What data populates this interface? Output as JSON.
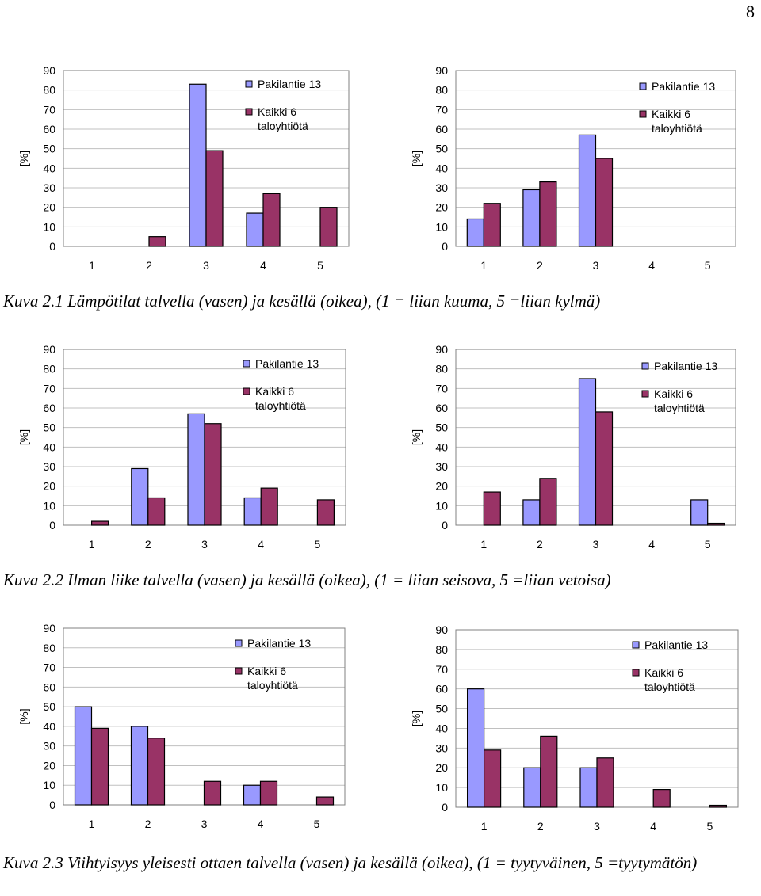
{
  "page_number": "8",
  "legend_labels": {
    "series_a": "Pakilantie 13",
    "series_b_line1": "Kaikki 6",
    "series_b_line2": "taloyhtiötä"
  },
  "colors": {
    "series_a": "#9999FF",
    "series_b": "#993366",
    "grid": "#c0c0c0",
    "axis": "#808080"
  },
  "captions": {
    "fig1": "Kuva 2.1 Lämpötilat talvella (vasen) ja kesällä (oikea), (1 = liian kuuma, 5 =liian kylmä)",
    "fig2": "Kuva 2.2 Ilman liike talvella (vasen) ja kesällä (oikea), (1 = liian seisova, 5 =liian vetoisa)",
    "fig3": "Kuva 2.3 Viihtyisyys yleisesti ottaen talvella (vasen) ja kesällä (oikea), (1 = tyytyväinen, 5 =tyytymätön)"
  },
  "chart_data": [
    {
      "id": "c1",
      "type": "bar",
      "ylabel": "[%]",
      "categories": [
        "1",
        "2",
        "3",
        "4",
        "5"
      ],
      "ylim": [
        0,
        90
      ],
      "yticks": [
        0,
        10,
        20,
        30,
        40,
        50,
        60,
        70,
        80,
        90
      ],
      "series": [
        {
          "name": "Pakilantie 13",
          "values": [
            0,
            0,
            83,
            17,
            0
          ]
        },
        {
          "name": "Kaikki 6 taloyhtiötä",
          "values": [
            0,
            5,
            49,
            27,
            20
          ]
        }
      ]
    },
    {
      "id": "c2",
      "type": "bar",
      "ylabel": "[%]",
      "categories": [
        "1",
        "2",
        "3",
        "4",
        "5"
      ],
      "ylim": [
        0,
        90
      ],
      "yticks": [
        0,
        10,
        20,
        30,
        40,
        50,
        60,
        70,
        80,
        90
      ],
      "series": [
        {
          "name": "Pakilantie 13",
          "values": [
            14,
            29,
            57,
            0,
            0
          ]
        },
        {
          "name": "Kaikki 6 taloyhtiötä",
          "values": [
            22,
            33,
            45,
            0,
            0
          ]
        }
      ]
    },
    {
      "id": "c3",
      "type": "bar",
      "ylabel": "[%]",
      "categories": [
        "1",
        "2",
        "3",
        "4",
        "5"
      ],
      "ylim": [
        0,
        90
      ],
      "yticks": [
        0,
        10,
        20,
        30,
        40,
        50,
        60,
        70,
        80,
        90
      ],
      "series": [
        {
          "name": "Pakilantie 13",
          "values": [
            0,
            29,
            57,
            14,
            0
          ]
        },
        {
          "name": "Kaikki 6 taloyhtiötä",
          "values": [
            2,
            14,
            52,
            19,
            13
          ]
        }
      ]
    },
    {
      "id": "c4",
      "type": "bar",
      "ylabel": "[%]",
      "categories": [
        "1",
        "2",
        "3",
        "4",
        "5"
      ],
      "ylim": [
        0,
        90
      ],
      "yticks": [
        0,
        10,
        20,
        30,
        40,
        50,
        60,
        70,
        80,
        90
      ],
      "series": [
        {
          "name": "Pakilantie 13",
          "values": [
            0,
            13,
            75,
            0,
            13
          ]
        },
        {
          "name": "Kaikki 6 taloyhtiötä",
          "values": [
            17,
            24,
            58,
            0,
            1
          ]
        }
      ]
    },
    {
      "id": "c5",
      "type": "bar",
      "ylabel": "[%]",
      "categories": [
        "1",
        "2",
        "3",
        "4",
        "5"
      ],
      "ylim": [
        0,
        90
      ],
      "yticks": [
        0,
        10,
        20,
        30,
        40,
        50,
        60,
        70,
        80,
        90
      ],
      "series": [
        {
          "name": "Pakilantie 13",
          "values": [
            50,
            40,
            0,
            10,
            0
          ]
        },
        {
          "name": "Kaikki 6 taloyhtiötä",
          "values": [
            39,
            34,
            12,
            12,
            4
          ]
        }
      ]
    },
    {
      "id": "c6",
      "type": "bar",
      "ylabel": "[%]",
      "categories": [
        "1",
        "2",
        "3",
        "4",
        "5"
      ],
      "ylim": [
        0,
        90
      ],
      "yticks": [
        0,
        10,
        20,
        30,
        40,
        50,
        60,
        70,
        80,
        90
      ],
      "series": [
        {
          "name": "Pakilantie 13",
          "values": [
            60,
            20,
            20,
            0,
            0
          ]
        },
        {
          "name": "Kaikki 6 taloyhtiötä",
          "values": [
            29,
            36,
            25,
            9,
            1
          ]
        }
      ]
    }
  ]
}
